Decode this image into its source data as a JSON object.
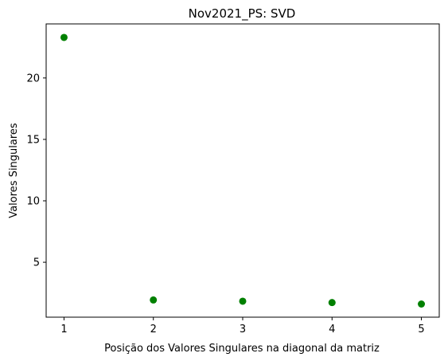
{
  "chart_data": {
    "type": "scatter",
    "title": "Nov2021_PS: SVD",
    "xlabel": "Posição dos Valores Singulares na diagonal da matriz",
    "ylabel": "Valores Singulares",
    "x": [
      1,
      2,
      3,
      4,
      5
    ],
    "y": [
      23.3,
      1.93,
      1.83,
      1.72,
      1.6
    ],
    "xlim": [
      0.8,
      5.2
    ],
    "ylim": [
      0.53,
      24.4
    ],
    "xticks": [
      "1",
      "2",
      "3",
      "4",
      "5"
    ],
    "yticks": [
      "5",
      "10",
      "15",
      "20"
    ],
    "marker_color": "#008000",
    "grid": false,
    "legend": "none"
  }
}
